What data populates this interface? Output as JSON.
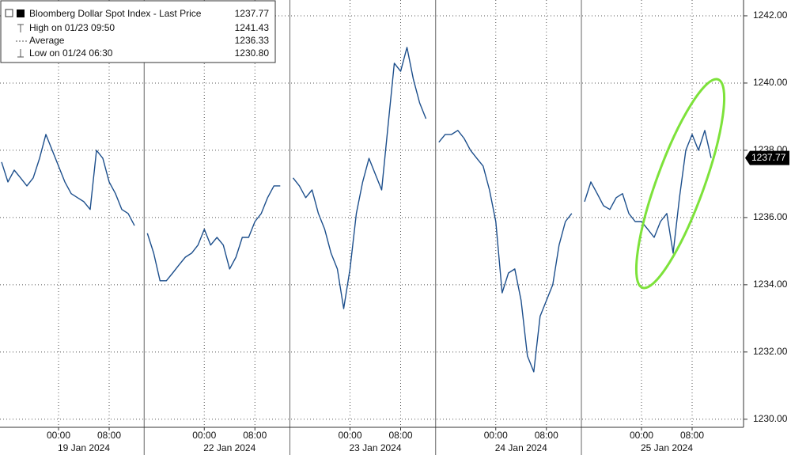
{
  "chart_data": {
    "type": "line",
    "series": [
      {
        "name": "Bloomberg Dollar Spot Index - Last Price",
        "color": "#1d4f8c",
        "values": [
          1237.65,
          1237.06,
          1237.41,
          1237.18,
          1236.94,
          1237.18,
          1237.76,
          1238.47,
          1238.0,
          1237.53,
          1237.06,
          1236.71,
          1236.59,
          1236.47,
          1236.24,
          1238.0,
          1237.76,
          1237.06,
          1236.71,
          1236.24,
          1236.12,
          1235.76,
          null,
          1235.53,
          1234.94,
          1234.12,
          1234.12,
          1234.35,
          1234.59,
          1234.82,
          1234.94,
          1235.18,
          1235.65,
          1235.18,
          1235.41,
          1235.18,
          1234.47,
          1234.82,
          1235.41,
          1235.41,
          1235.88,
          1236.12,
          1236.59,
          1236.94,
          1236.94,
          null,
          1237.18,
          1236.94,
          1236.59,
          1236.82,
          1236.12,
          1235.65,
          1234.94,
          1234.47,
          1233.29,
          1234.47,
          1236.12,
          1237.06,
          1237.76,
          1237.29,
          1236.82,
          1238.71,
          1240.59,
          1240.35,
          1241.06,
          1240.12,
          1239.41,
          1238.94,
          null,
          1238.24,
          1238.47,
          1238.47,
          1238.59,
          1238.35,
          1238.0,
          1237.76,
          1237.53,
          1236.82,
          1235.88,
          1233.76,
          1234.35,
          1234.47,
          1233.53,
          1231.88,
          1231.41,
          1233.06,
          1233.53,
          1234.0,
          1235.18,
          1235.88,
          1236.12,
          null,
          1236.47,
          1237.06,
          1236.71,
          1236.35,
          1236.24,
          1236.59,
          1236.71,
          1236.12,
          1235.88,
          1235.88,
          1235.65,
          1235.41,
          1235.88,
          1236.12,
          1234.94,
          1236.59,
          1238.0,
          1238.47,
          1238.0,
          1238.59,
          1237.77
        ]
      }
    ],
    "categories": [
      null,
      null,
      null,
      null,
      null,
      null,
      null,
      null,
      null,
      "00:00",
      null,
      null,
      null,
      null,
      null,
      null,
      null,
      "08:00",
      null,
      null,
      null,
      null,
      null,
      null,
      null,
      null,
      null,
      null,
      null,
      null,
      null,
      null,
      "00:00",
      null,
      null,
      null,
      null,
      null,
      null,
      null,
      "08:00",
      null,
      null,
      null,
      null,
      null,
      null,
      null,
      null,
      null,
      null,
      null,
      null,
      null,
      null,
      "00:00",
      null,
      null,
      null,
      null,
      null,
      null,
      null,
      "08:00",
      null,
      null,
      null,
      null,
      null,
      null,
      null,
      null,
      null,
      null,
      null,
      null,
      null,
      null,
      "00:00",
      null,
      null,
      null,
      null,
      null,
      null,
      null,
      "08:00",
      null,
      null,
      null,
      null,
      null,
      null,
      null,
      null,
      null,
      null,
      null,
      null,
      null,
      null,
      "00:00",
      null,
      null,
      null,
      null,
      null,
      null,
      null,
      "08:00",
      null,
      null,
      null
    ],
    "x_groups": [
      "19 Jan 2024",
      "22 Jan 2024",
      "23 Jan 2024",
      "24 Jan 2024",
      "25 Jan 2024"
    ],
    "ylim": [
      1229.76,
      1242.47
    ],
    "yticks": [
      {
        "value": 1230,
        "label": "1230.00"
      },
      {
        "value": 1232,
        "label": "1232.00"
      },
      {
        "value": 1234,
        "label": "1234.00"
      },
      {
        "value": 1236,
        "label": "1236.00"
      },
      {
        "value": 1238,
        "label": "1238.00"
      },
      {
        "value": 1240,
        "label": "1240.00"
      },
      {
        "value": 1242,
        "label": "1242.00"
      }
    ],
    "grid": true,
    "last_value": 1237.77,
    "last_value_label": "1237.77",
    "stats": {
      "names": [
        "High on 01/23 09:50",
        "Average",
        "Low on 01/24 06:30"
      ],
      "values": [
        1241.43,
        1236.33,
        1230.8
      ],
      "value_labels": [
        "1241.43",
        "1236.33",
        "1230.80"
      ]
    }
  }
}
